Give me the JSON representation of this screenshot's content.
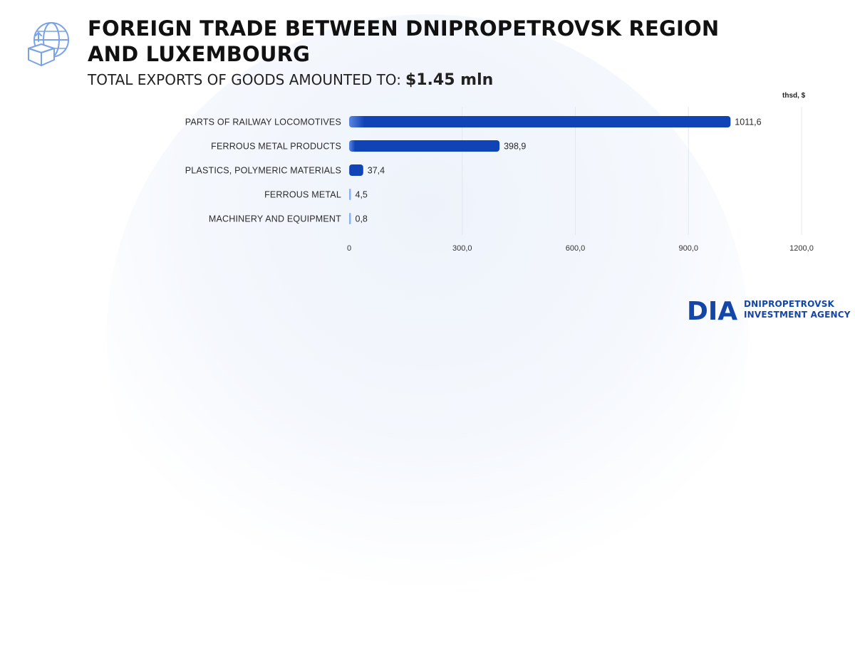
{
  "header": {
    "title": "FOREIGN TRADE BETWEEN DNIPROPETROVSK REGION AND LUXEMBOURG",
    "subtitle_prefix": "TOTAL EXPORTS OF GOODS AMOUNTED TO:",
    "subtitle_value": "$1.45  mln"
  },
  "brand": {
    "mark": "DIA",
    "line1": "DNIPROPETROVSK",
    "line2": "INVESTMENT AGENCY"
  },
  "icons": {
    "header_icon": "globe-export-box-icon"
  },
  "colors": {
    "bar": "#1043b6",
    "bar_light": "#5b86e0",
    "brand": "#1346a8"
  },
  "chart_data": {
    "type": "bar",
    "orientation": "horizontal",
    "unit_label": "thsd, $",
    "categories": [
      "PARTS OF RAILWAY LOCOMOTIVES",
      "FERROUS METAL PRODUCTS",
      "PLASTICS, POLYMERIC MATERIALS",
      "FERROUS METAL",
      "MACHINERY AND EQUIPMENT"
    ],
    "values": [
      1011.6,
      398.9,
      37.4,
      4.5,
      0.8
    ],
    "value_labels": [
      "1011,6",
      "398,9",
      "37,4",
      "4,5",
      "0,8"
    ],
    "xlim": [
      0,
      1200
    ],
    "xticks": [
      0,
      300,
      600,
      900,
      1200
    ],
    "xtick_labels": [
      "0",
      "300,0",
      "600,0",
      "900,0",
      "1200,0"
    ],
    "grid": true
  }
}
